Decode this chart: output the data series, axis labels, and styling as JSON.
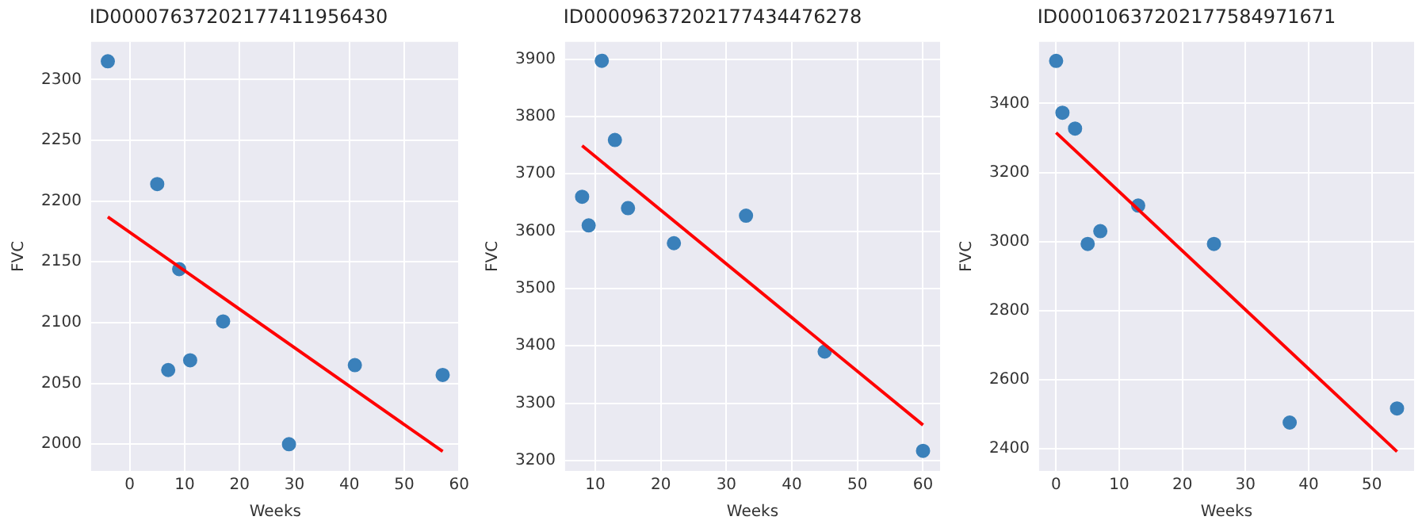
{
  "chart_data": [
    {
      "type": "scatter",
      "title": "ID00007637202177411956430",
      "xlabel": "Weeks",
      "ylabel": "FVC",
      "xlim": [
        -7.05,
        60.05
      ],
      "xticks": [
        0,
        10,
        20,
        30,
        40,
        50,
        60
      ],
      "ylim": [
        1978,
        2331
      ],
      "yticks": [
        2000,
        2050,
        2100,
        2150,
        2200,
        2250,
        2300
      ],
      "grid": true,
      "legend": false,
      "marker": "circle",
      "series": [
        {
          "color": "#3a80ba",
          "x": [
            -4,
            5,
            7,
            9,
            11,
            17,
            29,
            41,
            57
          ],
          "values": [
            2315,
            2214,
            2061,
            2144,
            2069,
            2101,
            2000,
            2065,
            2057
          ]
        },
        {
          "type": "line",
          "color": "#ff0000",
          "marker": "none",
          "x": [
            -4,
            57
          ],
          "values": [
            2187,
            1994
          ]
        }
      ]
    },
    {
      "type": "scatter",
      "title": "ID00009637202177434476278",
      "xlabel": "Weeks",
      "ylabel": "FVC",
      "xlim": [
        5.4,
        62.6
      ],
      "xticks": [
        10,
        20,
        30,
        40,
        50,
        60
      ],
      "ylim": [
        3182,
        3930
      ],
      "yticks": [
        3200,
        3300,
        3400,
        3500,
        3600,
        3700,
        3800,
        3900
      ],
      "grid": true,
      "legend": false,
      "marker": "circle",
      "series": [
        {
          "color": "#3a80ba",
          "x": [
            8,
            9,
            11,
            13,
            15,
            22,
            33,
            45,
            60
          ],
          "values": [
            3660,
            3610,
            3897,
            3759,
            3640,
            3579,
            3627,
            3390,
            3217
          ]
        },
        {
          "type": "line",
          "color": "#ff0000",
          "marker": "none",
          "x": [
            8,
            60
          ],
          "values": [
            3749,
            3262
          ]
        }
      ]
    },
    {
      "type": "scatter",
      "title": "ID00010637202177584971671",
      "xlabel": "Weeks",
      "ylabel": "FVC",
      "xlim": [
        -2.7,
        56.7
      ],
      "xticks": [
        0,
        10,
        20,
        30,
        40,
        50
      ],
      "ylim": [
        2336,
        3578
      ],
      "yticks": [
        2400,
        2600,
        2800,
        3000,
        3200,
        3400
      ],
      "grid": true,
      "legend": false,
      "marker": "circle",
      "series": [
        {
          "color": "#3a80ba",
          "x": [
            0,
            1,
            3,
            5,
            7,
            13,
            25,
            37,
            54
          ],
          "values": [
            3523,
            3373,
            3327,
            2993,
            3030,
            3104,
            2993,
            2476,
            2517
          ]
        },
        {
          "type": "line",
          "color": "#ff0000",
          "marker": "none",
          "x": [
            0,
            54
          ],
          "values": [
            3315,
            2392
          ]
        }
      ]
    }
  ]
}
